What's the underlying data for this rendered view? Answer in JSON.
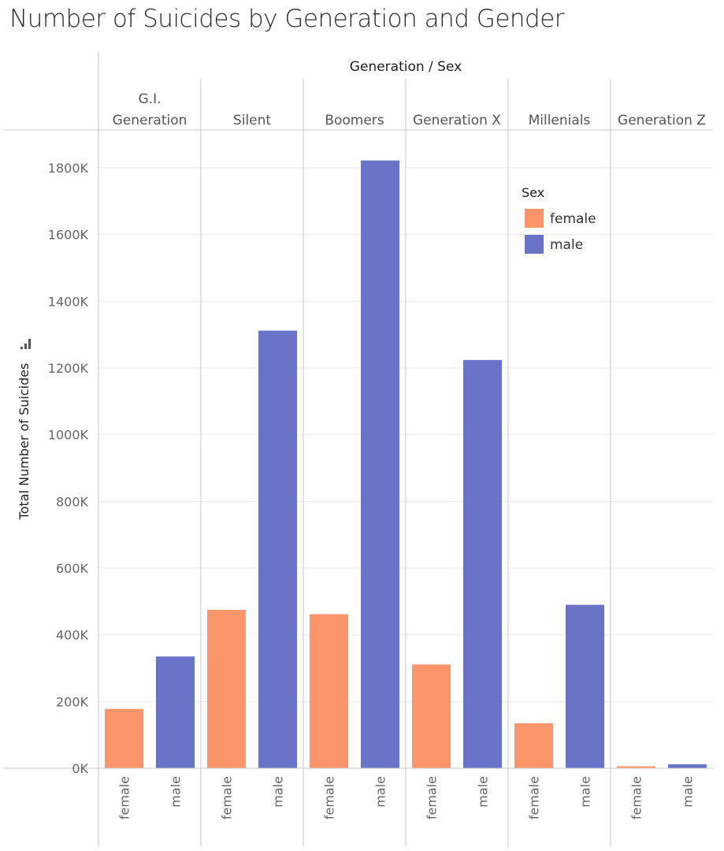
{
  "title": "Number of Suicides by Generation and Gender",
  "chart_data": {
    "type": "bar",
    "title": "Number of Suicides by Generation and Gender",
    "header_title": "Generation / Sex",
    "xlabel": "Generation / Sex",
    "ylabel": "Total Number of Suicides",
    "ylim": [
      0,
      1800000
    ],
    "y_ticks": [
      {
        "value": 0,
        "label": "0K"
      },
      {
        "value": 200000,
        "label": "200K"
      },
      {
        "value": 400000,
        "label": "400K"
      },
      {
        "value": 600000,
        "label": "600K"
      },
      {
        "value": 800000,
        "label": "800K"
      },
      {
        "value": 1000000,
        "label": "1000K"
      },
      {
        "value": 1200000,
        "label": "1200K"
      },
      {
        "value": 1400000,
        "label": "1400K"
      },
      {
        "value": 1600000,
        "label": "1600K"
      },
      {
        "value": 1800000,
        "label": "1800K"
      }
    ],
    "generations": [
      {
        "name": "G.I. Generation",
        "name_lines": [
          "G.I.",
          "Generation"
        ],
        "female": 178000,
        "male": 335000
      },
      {
        "name": "Silent",
        "name_lines": [
          "Silent"
        ],
        "female": 475000,
        "male": 1312000
      },
      {
        "name": "Boomers",
        "name_lines": [
          "Boomers"
        ],
        "female": 462000,
        "male": 1822000
      },
      {
        "name": "Generation X",
        "name_lines": [
          "Generation X"
        ],
        "female": 311000,
        "male": 1224000
      },
      {
        "name": "Millenials",
        "name_lines": [
          "Millenials"
        ],
        "female": 135000,
        "male": 490000
      },
      {
        "name": "Generation Z",
        "name_lines": [
          "Generation Z"
        ],
        "female": 6000,
        "male": 12000
      }
    ],
    "sexes": [
      "female",
      "male"
    ],
    "legend": {
      "title": "Sex",
      "items": [
        {
          "label": "female",
          "color": "#fd956a"
        },
        {
          "label": "male",
          "color": "#6a74c7"
        }
      ]
    },
    "colors": {
      "female": "#fd956a",
      "male": "#6a74c7"
    }
  }
}
